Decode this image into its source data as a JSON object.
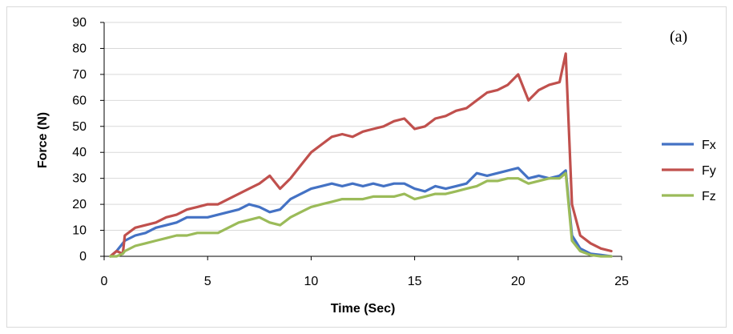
{
  "chart_data": {
    "type": "line",
    "annotation": "(a)",
    "xlabel": "Time (Sec)",
    "ylabel": "Force (N)",
    "xlim": [
      0,
      25
    ],
    "ylim": [
      0,
      90
    ],
    "xticks": [
      "0",
      "5",
      "10",
      "15",
      "20",
      "25"
    ],
    "yticks": [
      "0",
      "10",
      "20",
      "30",
      "40",
      "50",
      "60",
      "70",
      "80",
      "90"
    ],
    "grid": "horizontal",
    "legend_position": "right",
    "x": [
      0.3,
      0.6,
      0.9,
      1.0,
      1.5,
      2.0,
      2.5,
      3.0,
      3.5,
      4.0,
      4.5,
      5.0,
      5.5,
      6.0,
      6.5,
      7.0,
      7.5,
      8.0,
      8.5,
      9.0,
      9.5,
      10.0,
      10.5,
      11.0,
      11.5,
      12.0,
      12.5,
      13.0,
      13.5,
      14.0,
      14.5,
      15.0,
      15.5,
      16.0,
      16.5,
      17.0,
      17.5,
      18.0,
      18.5,
      19.0,
      19.5,
      20.0,
      20.5,
      21.0,
      21.5,
      22.0,
      22.3,
      22.6,
      23.0,
      23.5,
      24.0,
      24.5
    ],
    "series": [
      {
        "name": "Fx",
        "color": "#4472C4",
        "values": [
          0,
          2,
          5,
          6,
          8,
          9,
          11,
          12,
          13,
          15,
          15,
          15,
          16,
          17,
          18,
          20,
          19,
          17,
          18,
          22,
          24,
          26,
          27,
          28,
          27,
          28,
          27,
          28,
          27,
          28,
          28,
          26,
          25,
          27,
          26,
          27,
          28,
          32,
          31,
          32,
          33,
          34,
          30,
          31,
          30,
          31,
          33,
          8,
          3,
          1,
          0.5,
          0
        ]
      },
      {
        "name": "Fy",
        "color": "#C0504D",
        "values": [
          0,
          2,
          1,
          8,
          11,
          12,
          13,
          15,
          16,
          18,
          19,
          20,
          20,
          22,
          24,
          26,
          28,
          31,
          26,
          30,
          35,
          40,
          43,
          46,
          47,
          46,
          48,
          49,
          50,
          52,
          53,
          49,
          50,
          53,
          54,
          56,
          57,
          60,
          63,
          64,
          66,
          70,
          60,
          64,
          66,
          67,
          78,
          20,
          8,
          5,
          3,
          2
        ]
      },
      {
        "name": "Fz",
        "color": "#9BBB59",
        "values": [
          0,
          0,
          1,
          2,
          4,
          5,
          6,
          7,
          8,
          8,
          9,
          9,
          9,
          11,
          13,
          14,
          15,
          13,
          12,
          15,
          17,
          19,
          20,
          21,
          22,
          22,
          22,
          23,
          23,
          23,
          24,
          22,
          23,
          24,
          24,
          25,
          26,
          27,
          29,
          29,
          30,
          30,
          28,
          29,
          30,
          30,
          32,
          6,
          2,
          0.5,
          0,
          0
        ]
      }
    ]
  }
}
